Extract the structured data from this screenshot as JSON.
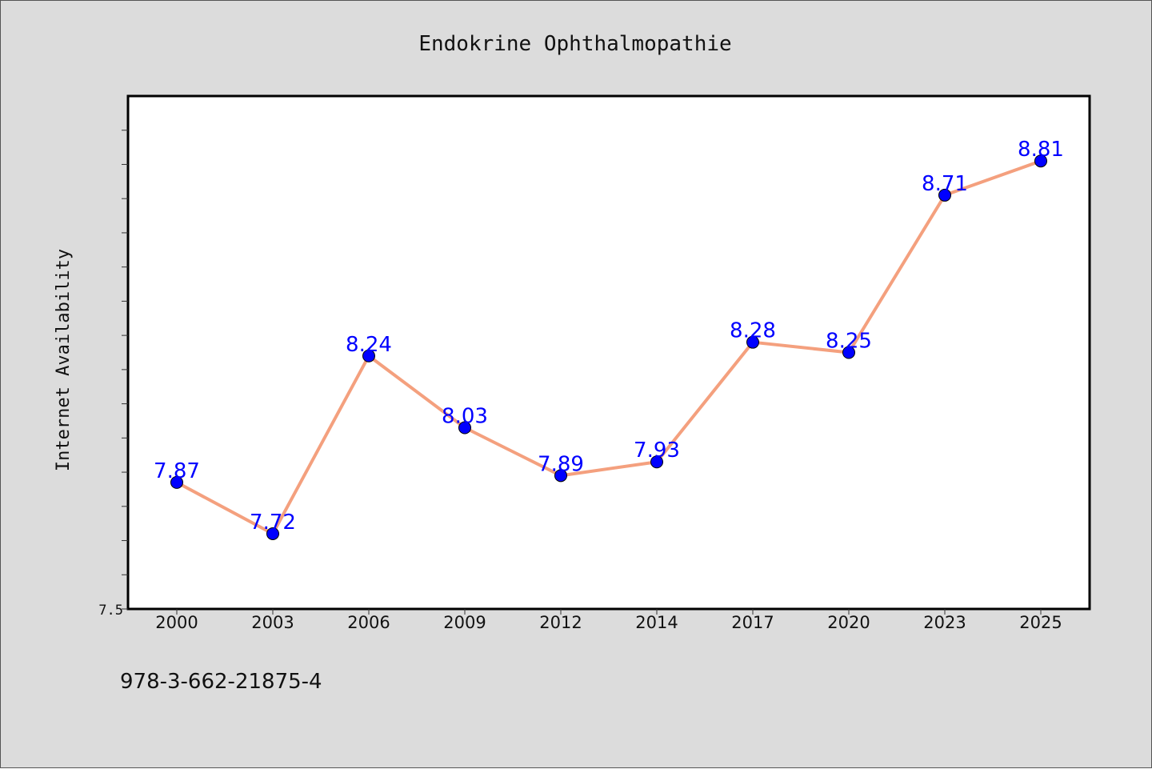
{
  "chart_data": {
    "type": "line",
    "title": "Endokrine Ophthalmopathie",
    "xlabel": "",
    "ylabel": "Internet Availability",
    "categories": [
      "2000",
      "2003",
      "2006",
      "2009",
      "2012",
      "2014",
      "2017",
      "2020",
      "2023",
      "2025"
    ],
    "values": [
      7.87,
      7.72,
      8.24,
      8.03,
      7.89,
      7.93,
      8.28,
      8.25,
      8.71,
      8.81
    ],
    "data_labels": [
      "7.87",
      "7.72",
      "8.24",
      "8.03",
      "7.89",
      "7.93",
      "8.28",
      "8.25",
      "8.71",
      "8.81"
    ],
    "ylim": [
      7.5,
      9.0
    ],
    "y_tick_labels": [
      "7.5"
    ],
    "line_color": "#f4a07e",
    "marker_color": "#0000ff",
    "label_color": "#0000ff",
    "grid": false,
    "legend": "none"
  },
  "footnote": "978-3-662-21875-4"
}
